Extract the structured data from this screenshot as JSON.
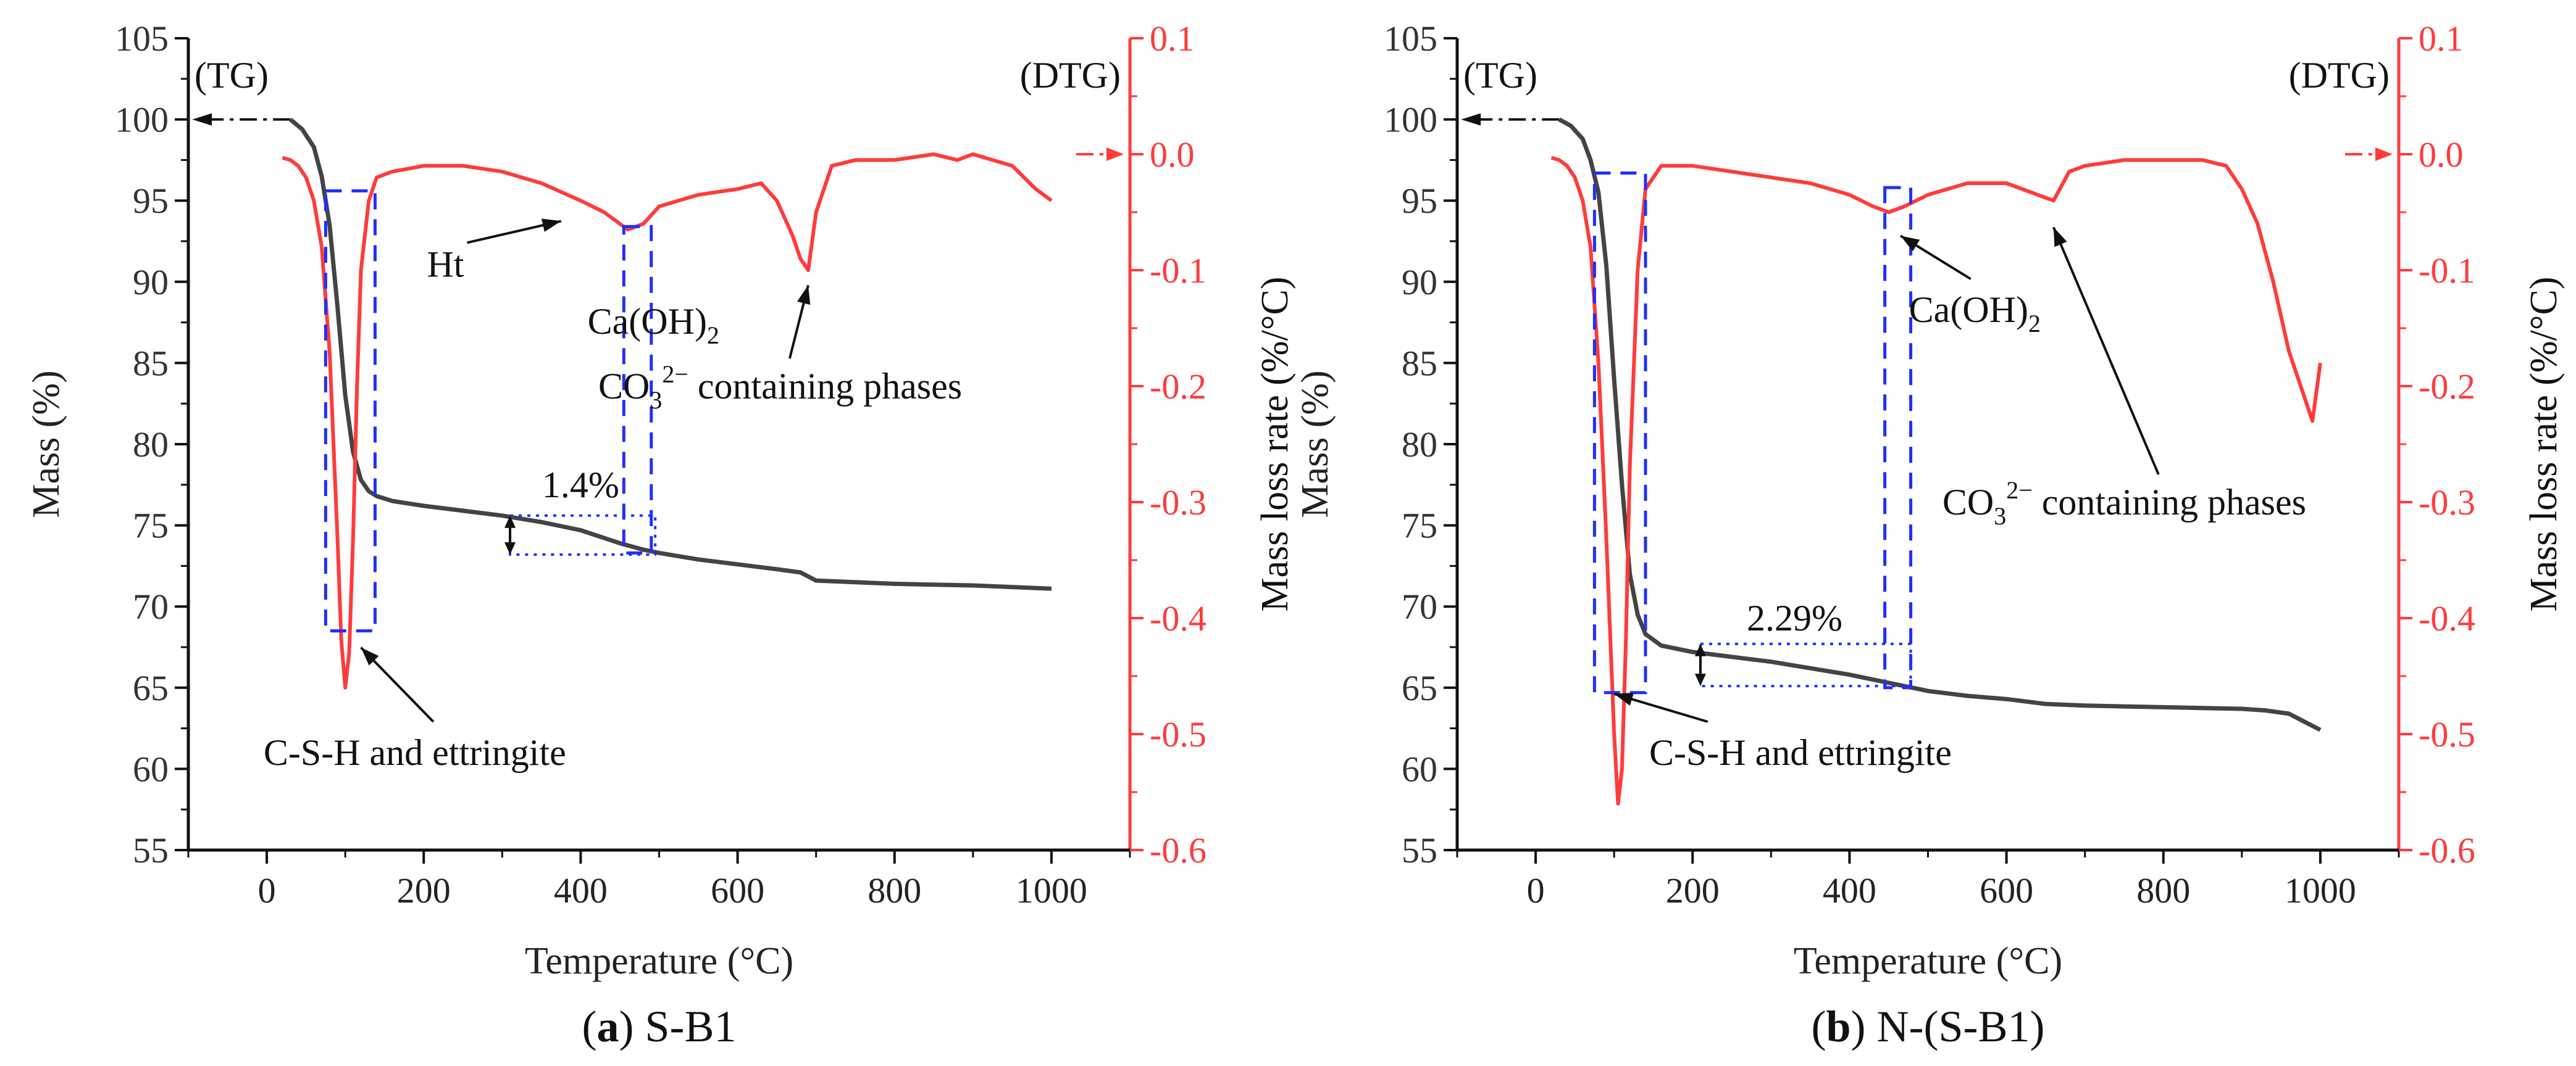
{
  "chart_data": [
    {
      "type": "line",
      "caption_letter": "a",
      "caption_text": "S-B1",
      "xlabel": "Temperature (°C)",
      "ylabel_left": "Mass (%)",
      "ylabel_right": "Mass loss rate (%/°C)",
      "xlim": [
        -100,
        1100
      ],
      "ylim_left": [
        55,
        105
      ],
      "ylim_right": [
        -0.6,
        0.1
      ],
      "xticks": [
        "0",
        "200",
        "400",
        "600",
        "800",
        "1000"
      ],
      "yticks_left": [
        "55",
        "60",
        "65",
        "70",
        "75",
        "80",
        "85",
        "90",
        "95",
        "100",
        "105"
      ],
      "yticks_right": [
        "0.1",
        "0.0",
        "-0.1",
        "-0.2",
        "-0.3",
        "-0.4",
        "-0.5",
        "-0.6"
      ],
      "legend_tg": "(TG)",
      "legend_dtg": "(DTG)",
      "series": [
        {
          "name": "TG",
          "axis": "left",
          "color": "#444444",
          "x": [
            30,
            45,
            60,
            70,
            80,
            90,
            100,
            110,
            120,
            130,
            140,
            160,
            200,
            250,
            300,
            350,
            400,
            450,
            480,
            500,
            550,
            600,
            650,
            680,
            700,
            750,
            800,
            850,
            900,
            950,
            1000
          ],
          "y": [
            100.0,
            99.4,
            98.3,
            96.5,
            93.5,
            88.5,
            83.0,
            79.5,
            77.8,
            77.1,
            76.8,
            76.5,
            76.2,
            75.9,
            75.6,
            75.2,
            74.7,
            73.9,
            73.5,
            73.3,
            72.9,
            72.6,
            72.3,
            72.1,
            71.6,
            71.5,
            71.4,
            71.35,
            71.3,
            71.2,
            71.1
          ]
        },
        {
          "name": "DTG",
          "axis": "right",
          "color": "#ff3b3b",
          "x": [
            20,
            30,
            40,
            50,
            60,
            70,
            80,
            90,
            95,
            100,
            105,
            110,
            115,
            120,
            130,
            140,
            160,
            200,
            250,
            300,
            350,
            400,
            430,
            460,
            480,
            500,
            550,
            600,
            630,
            650,
            670,
            680,
            690,
            700,
            720,
            750,
            800,
            850,
            880,
            900,
            950,
            980,
            1000
          ],
          "y": [
            -0.003,
            -0.005,
            -0.01,
            -0.02,
            -0.04,
            -0.08,
            -0.17,
            -0.33,
            -0.42,
            -0.46,
            -0.43,
            -0.33,
            -0.2,
            -0.1,
            -0.04,
            -0.02,
            -0.015,
            -0.01,
            -0.01,
            -0.015,
            -0.025,
            -0.04,
            -0.05,
            -0.065,
            -0.06,
            -0.045,
            -0.035,
            -0.03,
            -0.025,
            -0.04,
            -0.07,
            -0.09,
            -0.1,
            -0.05,
            -0.01,
            -0.005,
            -0.005,
            0.0,
            -0.005,
            0.0,
            -0.01,
            -0.03,
            -0.04
          ]
        }
      ],
      "annotations": [
        {
          "text": "Ht",
          "x": 330,
          "y_right": -0.055
        },
        {
          "text": "Ca(OH)",
          "sub": "2",
          "x": 460,
          "y_right": -0.075
        },
        {
          "text": "CO",
          "sub": "3",
          "sup": "2−",
          "text_after": " containing phases",
          "x": 690,
          "y_right": -0.105
        },
        {
          "text": "C-S-H and ettringite",
          "x": 110,
          "y_right": -0.42
        },
        {
          "text": "1.4%",
          "x": 400,
          "y_left": 75.4
        }
      ]
    },
    {
      "type": "line",
      "caption_letter": "b",
      "caption_text": "N-(S-B1)",
      "xlabel": "Temperature (°C)",
      "ylabel_left": "Mass (%)",
      "ylabel_right": "Mass loss rate (%/°C)",
      "xlim": [
        -100,
        1100
      ],
      "ylim_left": [
        55,
        105
      ],
      "ylim_right": [
        -0.6,
        0.1
      ],
      "xticks": [
        "0",
        "200",
        "400",
        "600",
        "800",
        "1000"
      ],
      "yticks_left": [
        "55",
        "60",
        "65",
        "70",
        "75",
        "80",
        "85",
        "90",
        "95",
        "100",
        "105"
      ],
      "yticks_right": [
        "0.1",
        "0.0",
        "-0.1",
        "-0.2",
        "-0.3",
        "-0.4",
        "-0.5",
        "-0.6"
      ],
      "legend_tg": "(TG)",
      "legend_dtg": "(DTG)",
      "series": [
        {
          "name": "TG",
          "axis": "left",
          "color": "#444444",
          "x": [
            30,
            45,
            60,
            70,
            80,
            90,
            100,
            110,
            120,
            130,
            140,
            160,
            200,
            250,
            300,
            350,
            400,
            450,
            480,
            500,
            550,
            600,
            650,
            700,
            750,
            800,
            850,
            900,
            930,
            960,
            980,
            1000
          ],
          "y": [
            100.0,
            99.6,
            98.8,
            97.5,
            95.5,
            91.0,
            84.0,
            77.5,
            72.0,
            69.5,
            68.3,
            67.6,
            67.2,
            66.9,
            66.6,
            66.2,
            65.8,
            65.3,
            65.0,
            64.8,
            64.5,
            64.3,
            64.0,
            63.9,
            63.85,
            63.8,
            63.75,
            63.7,
            63.6,
            63.4,
            62.9,
            62.4
          ]
        },
        {
          "name": "DTG",
          "axis": "right",
          "color": "#ff3b3b",
          "x": [
            20,
            30,
            40,
            50,
            60,
            70,
            80,
            90,
            100,
            105,
            110,
            115,
            120,
            130,
            140,
            160,
            200,
            250,
            300,
            350,
            400,
            430,
            450,
            470,
            500,
            550,
            600,
            640,
            660,
            680,
            700,
            750,
            800,
            850,
            880,
            900,
            920,
            940,
            960,
            980,
            990,
            1000
          ],
          "y": [
            -0.003,
            -0.005,
            -0.01,
            -0.02,
            -0.04,
            -0.08,
            -0.18,
            -0.33,
            -0.5,
            -0.56,
            -0.53,
            -0.42,
            -0.27,
            -0.1,
            -0.03,
            -0.01,
            -0.01,
            -0.015,
            -0.02,
            -0.025,
            -0.035,
            -0.045,
            -0.05,
            -0.045,
            -0.035,
            -0.025,
            -0.025,
            -0.035,
            -0.04,
            -0.015,
            -0.01,
            -0.005,
            -0.005,
            -0.005,
            -0.01,
            -0.03,
            -0.06,
            -0.11,
            -0.17,
            -0.21,
            -0.23,
            -0.18
          ]
        }
      ],
      "annotations": [
        {
          "text": "Ca(OH)",
          "sub": "2",
          "x": 460,
          "y_right": -0.065
        },
        {
          "text": "CO",
          "sub": "3",
          "sup": "2−",
          "text_after": " containing phases",
          "x": 660,
          "y_right": -0.055
        },
        {
          "text": "C-S-H and ettringite",
          "x": 125,
          "y_right": -0.46
        },
        {
          "text": "2.29%",
          "x": 330,
          "y_left": 67.2
        }
      ]
    }
  ]
}
